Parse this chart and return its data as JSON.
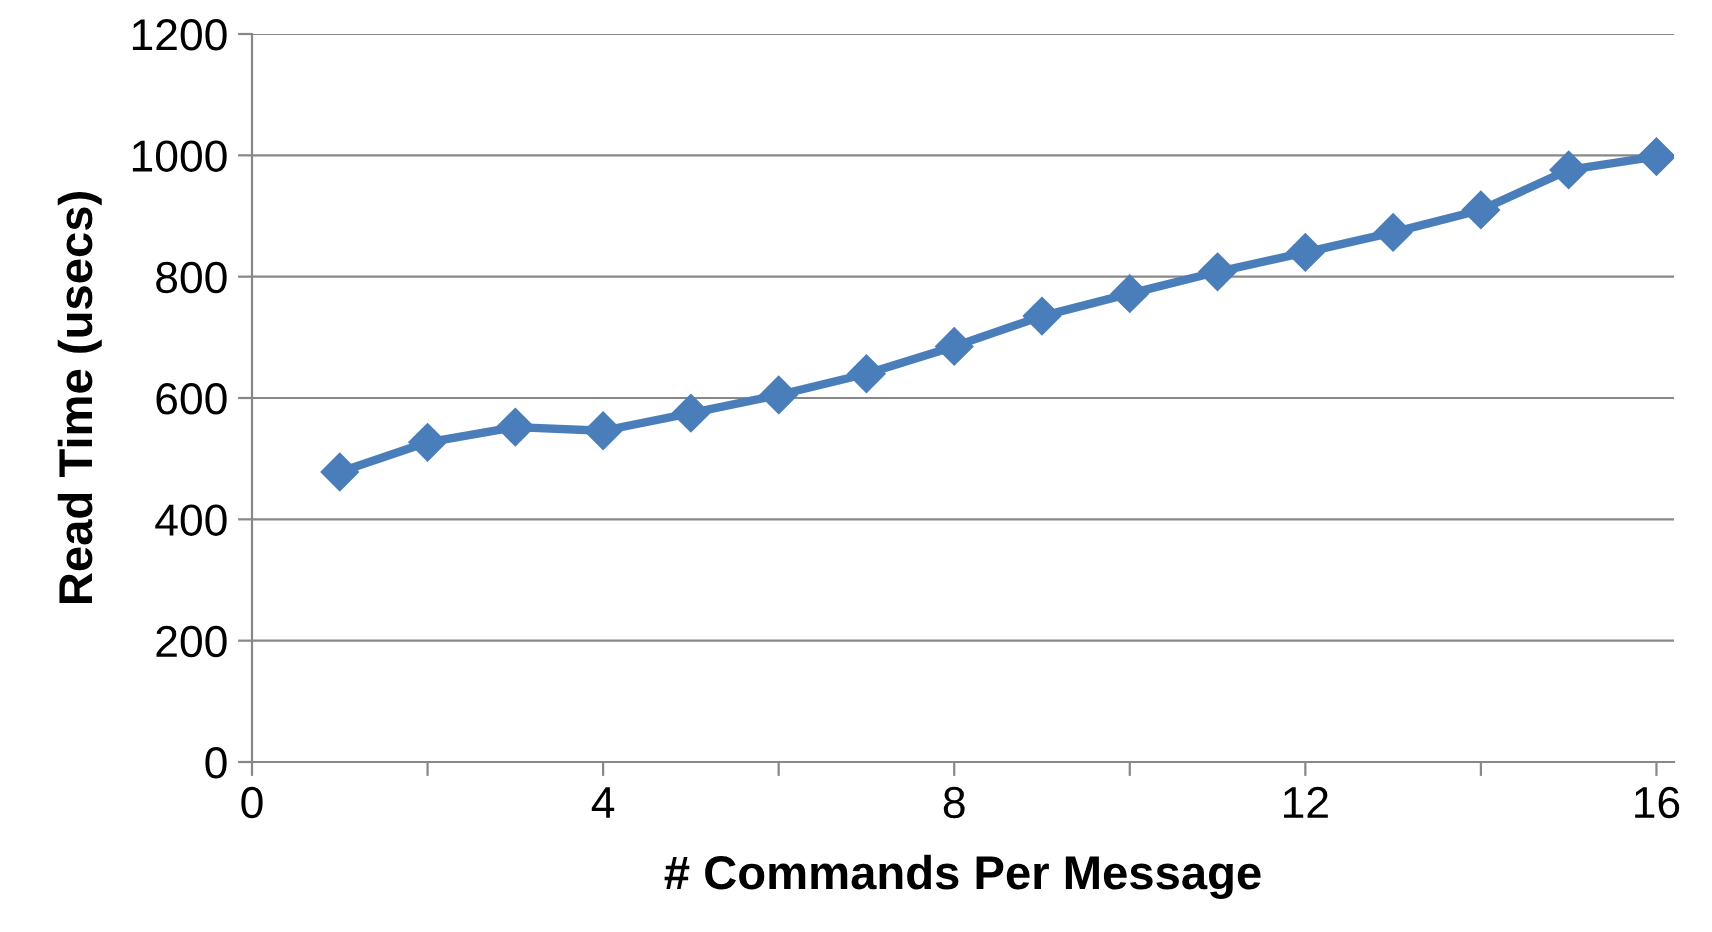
{
  "chart_data": {
    "type": "line",
    "xlabel": "# Commands Per Message",
    "ylabel": "Read Time (usecs)",
    "x": [
      1,
      2,
      3,
      4,
      5,
      6,
      7,
      8,
      9,
      10,
      11,
      12,
      13,
      14,
      15,
      16
    ],
    "series": [
      {
        "color": "#4a7ebb",
        "values": [
          478,
          527,
          552,
          546,
          575,
          605,
          640,
          685,
          735,
          772,
          808,
          840,
          873,
          910,
          976,
          998
        ]
      }
    ],
    "xlim": [
      0,
      16.2
    ],
    "xticks": [
      0,
      {
        "value": 2,
        "label": null
      },
      4,
      {
        "value": 6,
        "label": null
      },
      8,
      {
        "value": 10,
        "label": null
      },
      12,
      {
        "value": 14,
        "label": null
      },
      16
    ],
    "ylim": [
      0,
      1200
    ],
    "yticks": [
      0,
      200,
      400,
      600,
      800,
      1000,
      1200
    ],
    "grid": "y",
    "legend": false,
    "marker": "diamond",
    "line_style": "solid"
  }
}
